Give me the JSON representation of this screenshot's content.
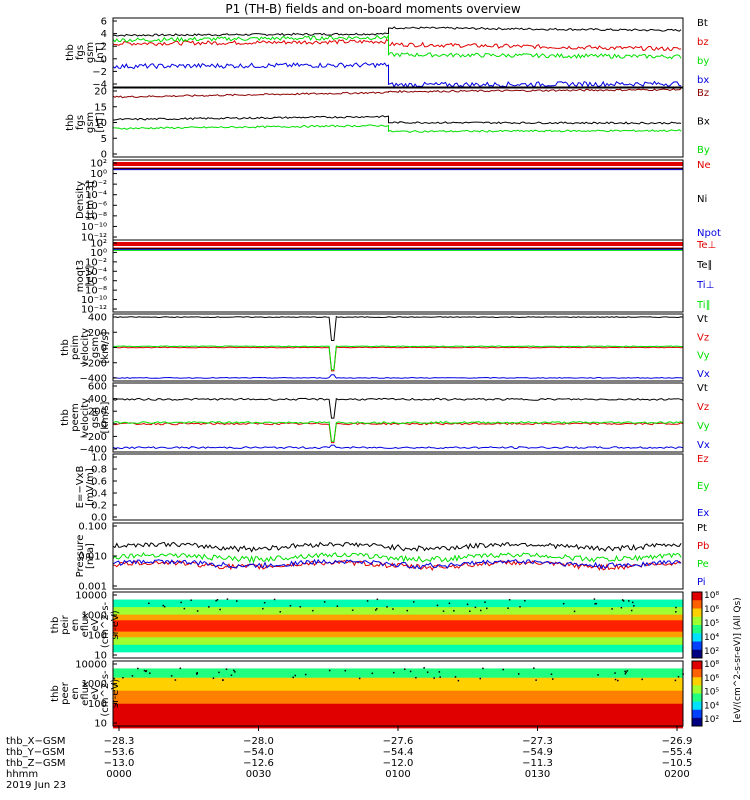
{
  "title": "P1 (TH-B) fields and on-board moments overview",
  "colors": {
    "black": "#000000",
    "red": "#e00000",
    "green": "#00e000",
    "blue": "#0000e0",
    "darkred": "#8b0000"
  },
  "chart_data": [
    {
      "id": "fgs",
      "type": "line",
      "ylabel": [
        "thb",
        "fgs",
        "gsm",
        "[nT]"
      ],
      "ylim": [
        -4,
        6
      ],
      "yticks": [
        "6",
        "4",
        "2",
        "0",
        "−2",
        "−4"
      ],
      "series": [
        {
          "name": "Bt",
          "color": "#000000",
          "segments": [
            {
              "t": [
                0,
                58
              ],
              "v": [
                3.5,
                3.7
              ]
            },
            {
              "t": [
                58,
                120
              ],
              "v": [
                4.6,
                4.2
              ]
            }
          ],
          "noise": 0.15
        },
        {
          "name": "bz",
          "color": "#e00000",
          "segments": [
            {
              "t": [
                0,
                58
              ],
              "v": [
                2.3,
                2.6
              ]
            },
            {
              "t": [
                58,
                120
              ],
              "v": [
                2.2,
                1.5
              ]
            }
          ],
          "noise": 0.3
        },
        {
          "name": "by",
          "color": "#00e000",
          "segments": [
            {
              "t": [
                0,
                58
              ],
              "v": [
                2.8,
                3.2
              ]
            },
            {
              "t": [
                58,
                120
              ],
              "v": [
                0.7,
                0.4
              ]
            }
          ],
          "noise": 0.3
        },
        {
          "name": "bx",
          "color": "#0000e0",
          "segments": [
            {
              "t": [
                0,
                58
              ],
              "v": [
                -1.0,
                -0.8
              ]
            },
            {
              "t": [
                58,
                120
              ],
              "v": [
                -3.7,
                -3.5
              ]
            }
          ],
          "noise": 0.35
        }
      ]
    },
    {
      "id": "fgs_dsl",
      "type": "line",
      "ylabel": [
        "thb",
        "fgs",
        "gsm",
        "[nT]"
      ],
      "ylim": [
        -2,
        21
      ],
      "yticks": [
        "20",
        "15",
        "10",
        "5",
        "0"
      ],
      "series": [
        {
          "name": "Bz",
          "color": "#8b0000",
          "segments": [
            {
              "t": [
                0,
                58
              ],
              "v": [
                18,
                19.5
              ]
            },
            {
              "t": [
                58,
                120
              ],
              "v": [
                19.8,
                20.5
              ]
            }
          ],
          "noise": 0.3
        },
        {
          "name": "Bx",
          "color": "#000000",
          "segments": [
            {
              "t": [
                0,
                58
              ],
              "v": [
                10.5,
                11.5
              ]
            },
            {
              "t": [
                58,
                120
              ],
              "v": [
                9.5,
                9.3
              ]
            }
          ],
          "noise": 0.3
        },
        {
          "name": "By",
          "color": "#00e000",
          "segments": [
            {
              "t": [
                0,
                58
              ],
              "v": [
                7.5,
                8.5
              ]
            },
            {
              "t": [
                58,
                120
              ],
              "v": [
                6.5,
                6.8
              ]
            }
          ],
          "noise": 0.3
        }
      ]
    },
    {
      "id": "density",
      "type": "line",
      "ylabel": [
        "Density",
        "[cm−3]"
      ],
      "log": true,
      "ylim": [
        -13,
        2
      ],
      "yticks": [
        "10²",
        "10⁰",
        "10⁻²",
        "10⁻⁴",
        "10⁻⁶",
        "10⁻⁸",
        "10⁻¹⁰",
        "10⁻¹²"
      ],
      "series": [
        {
          "name": "Ne",
          "color": "#e00000"
        },
        {
          "name": "Ni",
          "color": "#000000"
        },
        {
          "name": "Npot",
          "color": "#0000e0"
        }
      ]
    },
    {
      "id": "temp",
      "type": "line",
      "ylabel": [
        "moqt3",
        "[eV]"
      ],
      "log": true,
      "ylim": [
        -13,
        2
      ],
      "yticks": [
        "10²",
        "10⁰",
        "10⁻²",
        "10⁻⁴",
        "10⁻⁶",
        "10⁻⁸",
        "10⁻¹⁰",
        "10⁻¹²"
      ],
      "series": [
        {
          "name": "Te⊥",
          "color": "#e00000"
        },
        {
          "name": "Te∥",
          "color": "#000000"
        },
        {
          "name": "Ti⊥",
          "color": "#0000e0"
        },
        {
          "name": "Ti∥",
          "color": "#00e000"
        }
      ]
    },
    {
      "id": "peim",
      "type": "line",
      "ylabel": [
        "thb",
        "peim",
        "velocity",
        "gsm",
        "[km/s]"
      ],
      "ylim": [
        -430,
        430
      ],
      "yticks": [
        "400",
        "200",
        "0",
        "−200",
        "−400"
      ],
      "series": [
        {
          "name": "Vt",
          "color": "#000000",
          "level": 390
        },
        {
          "name": "Vz",
          "color": "#e00000",
          "level": 0
        },
        {
          "name": "Vy",
          "color": "#00e000",
          "level": 15
        },
        {
          "name": "Vx",
          "color": "#0000e0",
          "level": -390
        }
      ]
    },
    {
      "id": "peem",
      "type": "line",
      "ylabel": [
        "thb",
        "peem",
        "velocity",
        "gsm",
        "[km/s]"
      ],
      "ylim": [
        -450,
        650
      ],
      "yticks": [
        "600",
        "400",
        "200",
        "0",
        "−200",
        "−400"
      ],
      "series": [
        {
          "name": "Vt",
          "color": "#000000",
          "level": 390
        },
        {
          "name": "Vz",
          "color": "#e00000",
          "level": 0
        },
        {
          "name": "Vy",
          "color": "#00e000",
          "level": 20
        },
        {
          "name": "Vx",
          "color": "#0000e0",
          "level": -380
        }
      ]
    },
    {
      "id": "efield",
      "type": "line",
      "ylabel": [
        "E=−VxB",
        "[mV/m]"
      ],
      "ylim": [
        0,
        1
      ],
      "yticks": [
        "1.0",
        "0.8",
        "0.6",
        "0.4",
        "0.2",
        "0.0"
      ],
      "series": [
        {
          "name": "Ez",
          "color": "#e00000"
        },
        {
          "name": "Ey",
          "color": "#00e000"
        },
        {
          "name": "Ex",
          "color": "#0000e0"
        }
      ]
    },
    {
      "id": "pressure",
      "type": "line",
      "ylabel": [
        "Pressure",
        "[nPa]"
      ],
      "log": true,
      "ylim": [
        -3,
        -1
      ],
      "yticks": [
        "0.100",
        "0.010",
        "0.001"
      ],
      "series": [
        {
          "name": "Pt",
          "color": "#000000",
          "level": 0.02
        },
        {
          "name": "Pb",
          "color": "#e00000",
          "level": 0.0055
        },
        {
          "name": "Pe",
          "color": "#00e000",
          "level": 0.0095
        },
        {
          "name": "Pi",
          "color": "#0000e0",
          "level": 0.006
        }
      ]
    },
    {
      "id": "peir",
      "type": "heatmap",
      "ylabel": [
        "thb",
        "peir",
        "en",
        "eflux",
        "eV",
        "(cm^2-s-",
        "sr-eV)"
      ],
      "yticks": [
        "10000",
        "1000",
        "100",
        "10"
      ]
    },
    {
      "id": "peer",
      "type": "heatmap",
      "ylabel": [
        "thb",
        "peer",
        "en",
        "eflux",
        "eV",
        "(cm^2-s-",
        "sr-eV)"
      ],
      "yticks": [
        "10000",
        "1000",
        "100",
        "10"
      ]
    }
  ],
  "colorbar": {
    "title": "[eV/(cm^2-s-sr-eV)] (All Qs)",
    "ticks": [
      "10⁸",
      "10⁶",
      "10⁵",
      "10⁴",
      "10²",
      "10⁸",
      "10⁶",
      "10⁵",
      "10⁴",
      "10²"
    ]
  },
  "xaxis": {
    "row_labels": [
      "thb_X−GSM",
      "thb_Y−GSM",
      "thb_Z−GSM",
      "hhmm",
      "2019 Jun 23"
    ],
    "columns": [
      {
        "x": "−28.3",
        "y": "−53.6",
        "z": "−13.0",
        "hhmm": "0000"
      },
      {
        "x": "−28.0",
        "y": "−54.0",
        "z": "−12.6",
        "hhmm": "0030"
      },
      {
        "x": "−27.6",
        "y": "−54.4",
        "z": "−12.0",
        "hhmm": "0100"
      },
      {
        "x": "−27.3",
        "y": "−54.9",
        "z": "−11.3",
        "hhmm": "0130"
      },
      {
        "x": "−26.9",
        "y": "−55.4",
        "z": "−10.5",
        "hhmm": "0200"
      }
    ]
  }
}
